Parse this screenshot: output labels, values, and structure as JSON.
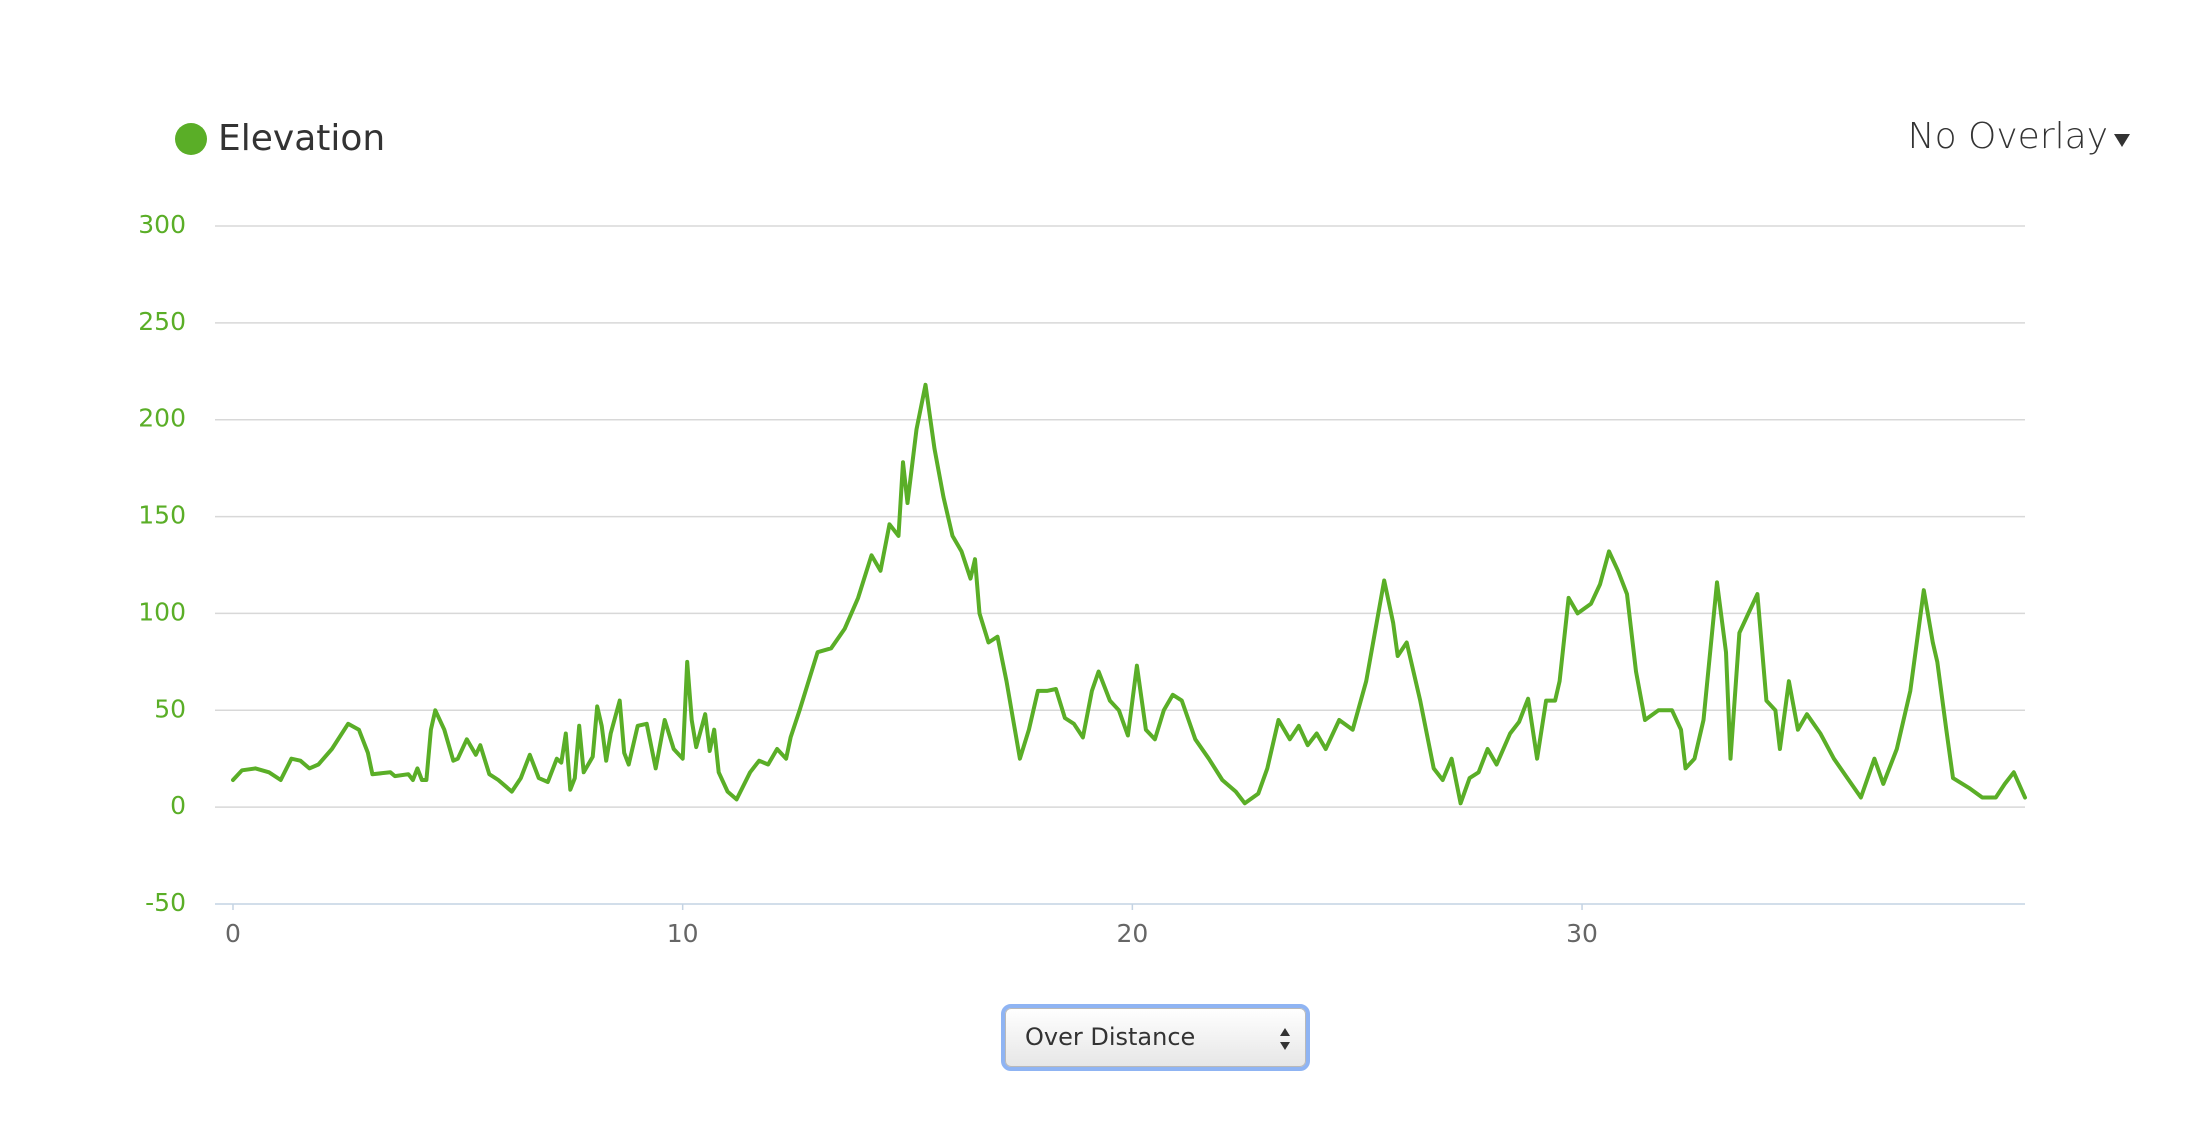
{
  "chart_data": {
    "type": "line",
    "overlay_label": "No Overlay",
    "x_mode": "Over Distance",
    "x": [
      0,
      0.2,
      0.5,
      0.8,
      1.06,
      1.3,
      1.5,
      1.7,
      1.9,
      2.2,
      2.56,
      2.8,
      3.0,
      3.1,
      3.5,
      3.6,
      3.9,
      4.0,
      4.1,
      4.2,
      4.3,
      4.4,
      4.5,
      4.7,
      4.9,
      5.0,
      5.2,
      5.4,
      5.5,
      5.7,
      5.9,
      6.2,
      6.4,
      6.6,
      6.8,
      7.0,
      7.2,
      7.3,
      7.4,
      7.5,
      7.6,
      7.7,
      7.8,
      8.0,
      8.1,
      8.2,
      8.3,
      8.4,
      8.6,
      8.7,
      8.8,
      9.0,
      9.2,
      9.4,
      9.6,
      9.8,
      10.0,
      10.1,
      10.2,
      10.3,
      10.5,
      10.6,
      10.7,
      10.8,
      11.0,
      11.2,
      11.5,
      11.7,
      11.9,
      12.1,
      12.3,
      12.4,
      12.6,
      12.8,
      13.0,
      13.3,
      13.6,
      13.9,
      14.2,
      14.4,
      14.6,
      14.8,
      14.9,
      15.0,
      15.2,
      15.4,
      15.6,
      15.8,
      16.0,
      16.2,
      16.4,
      16.5,
      16.6,
      16.8,
      17.0,
      17.2,
      17.5,
      17.7,
      17.9,
      18.1,
      18.3,
      18.5,
      18.7,
      18.9,
      19.1,
      19.25,
      19.5,
      19.7,
      19.9,
      20.1,
      20.3,
      20.5,
      20.7,
      20.9,
      21.1,
      21.4,
      21.7,
      22.0,
      22.3,
      22.5,
      22.8,
      23.0,
      23.25,
      23.5,
      23.7,
      23.9,
      24.1,
      24.3,
      24.6,
      24.9,
      25.2,
      25.6,
      25.8,
      25.9,
      26.1,
      26.4,
      26.7,
      26.9,
      27.1,
      27.3,
      27.5,
      27.7,
      27.9,
      28.1,
      28.4,
      28.6,
      28.8,
      29.0,
      29.2,
      29.4,
      29.5,
      29.7,
      29.9,
      30.2,
      30.4,
      30.6,
      30.8,
      31.0,
      31.2,
      31.4,
      31.7,
      32.0,
      32.2,
      32.3,
      32.5,
      32.7,
      33.0,
      33.2,
      33.3,
      33.5,
      33.7,
      33.9,
      34.1,
      34.3,
      34.4,
      34.6,
      34.8,
      35.0,
      35.3,
      35.6,
      35.9,
      36.2,
      36.5,
      36.7,
      37.0,
      37.3,
      37.6,
      37.8,
      37.9,
      38.1,
      38.25,
      38.6,
      38.9,
      39.2,
      39.4,
      39.6,
      39.85
    ],
    "series": [
      {
        "name": "Elevation",
        "color": "#5aae27",
        "values": [
          14,
          19,
          20,
          18,
          14,
          25,
          24,
          20,
          22,
          30,
          43,
          40,
          28,
          17,
          18,
          16,
          17,
          14,
          20,
          14,
          14,
          40,
          50,
          40,
          24,
          25,
          35,
          27,
          32,
          17,
          14,
          8,
          15,
          27,
          15,
          13,
          25,
          23,
          38,
          9,
          15,
          42,
          18,
          26,
          52,
          42,
          24,
          38,
          55,
          28,
          22,
          42,
          43,
          20,
          45,
          30,
          25,
          75,
          45,
          31,
          48,
          29,
          40,
          18,
          8,
          4,
          18,
          24,
          22,
          30,
          25,
          36,
          50,
          65,
          80,
          82,
          92,
          108,
          130,
          122,
          146,
          140,
          178,
          157,
          195,
          218,
          185,
          160,
          140,
          132,
          118,
          128,
          100,
          85,
          88,
          65,
          25,
          40,
          60,
          60,
          61,
          46,
          43,
          36,
          60,
          70,
          55,
          50,
          37,
          73,
          40,
          35,
          50,
          58,
          55,
          35,
          25,
          14,
          8,
          2,
          7,
          20,
          45,
          35,
          42,
          32,
          38,
          30,
          45,
          40,
          65,
          117,
          95,
          78,
          85,
          55,
          20,
          14,
          25,
          2,
          15,
          18,
          30,
          22,
          38,
          44,
          56,
          25,
          55,
          55,
          65,
          108,
          100,
          105,
          115,
          132,
          122,
          110,
          70,
          45,
          50,
          50,
          40,
          20,
          25,
          45,
          116,
          80,
          25,
          90,
          100,
          110,
          55,
          50,
          30,
          65,
          40,
          48,
          38,
          25,
          15,
          5,
          25,
          12,
          30,
          60,
          112,
          85,
          75,
          40,
          15,
          10,
          5,
          5,
          12,
          18,
          5
        ]
      }
    ],
    "xlim": [
      -0.4,
      39.85
    ],
    "xticks": [
      0,
      10,
      20,
      30
    ],
    "ylim": [
      -50,
      300
    ],
    "yticks": [
      -50,
      0,
      50,
      100,
      150,
      200,
      250,
      300
    ],
    "grid": true
  }
}
